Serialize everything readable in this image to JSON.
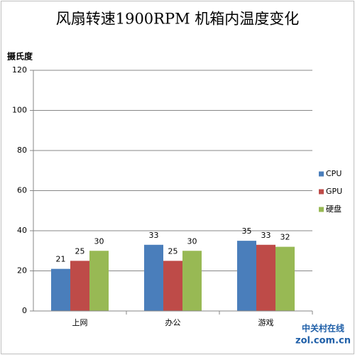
{
  "chart_data": {
    "type": "bar",
    "title": "风扇转速1900RPM 机箱内温度变化",
    "y_label": "摄氏度",
    "categories": [
      "上网",
      "办公",
      "游戏"
    ],
    "series": [
      {
        "name": "CPU",
        "color": "#4a7ebb",
        "values": [
          21,
          33,
          35
        ]
      },
      {
        "name": "GPU",
        "color": "#be4b48",
        "values": [
          25,
          25,
          33
        ]
      },
      {
        "name": "硬盘",
        "color": "#98b954",
        "values": [
          30,
          30,
          32
        ]
      }
    ],
    "ylim": [
      0,
      120
    ],
    "yticks": [
      0,
      20,
      40,
      60,
      80,
      100,
      120
    ],
    "grid": true,
    "legend": "right",
    "watermark": [
      "中关村在线",
      "zol.com.cn"
    ]
  }
}
